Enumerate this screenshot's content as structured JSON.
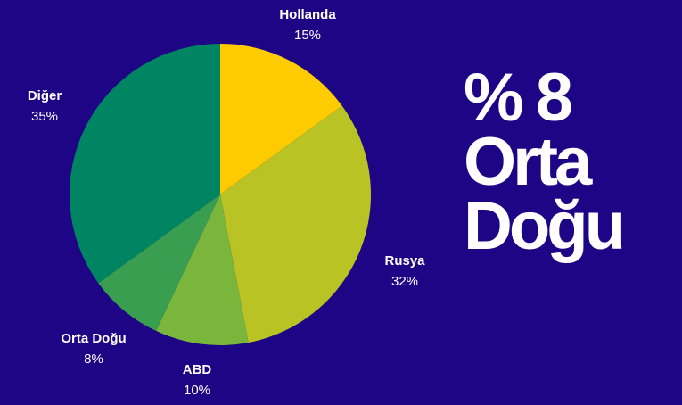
{
  "colors": {
    "background": "#1d0585",
    "text": "#ffffff"
  },
  "headline": {
    "line1": "% 8",
    "line2": "Orta",
    "line3": "Doğu"
  },
  "chart_data": {
    "type": "pie",
    "start_angle_deg": 0,
    "direction": "clockwise",
    "slices": [
      {
        "label": "Hollanda",
        "value": 15,
        "value_label": "15%",
        "color": "#fecb00"
      },
      {
        "label": "Rusya",
        "value": 32,
        "value_label": "32%",
        "color": "#b9c323"
      },
      {
        "label": "ABD",
        "value": 10,
        "value_label": "10%",
        "color": "#7ab53c"
      },
      {
        "label": "Orta Doğu",
        "value": 8,
        "value_label": "8%",
        "color": "#3a9e50"
      },
      {
        "label": "Diğer",
        "value": 35,
        "value_label": "35%",
        "color": "#008563"
      }
    ]
  }
}
